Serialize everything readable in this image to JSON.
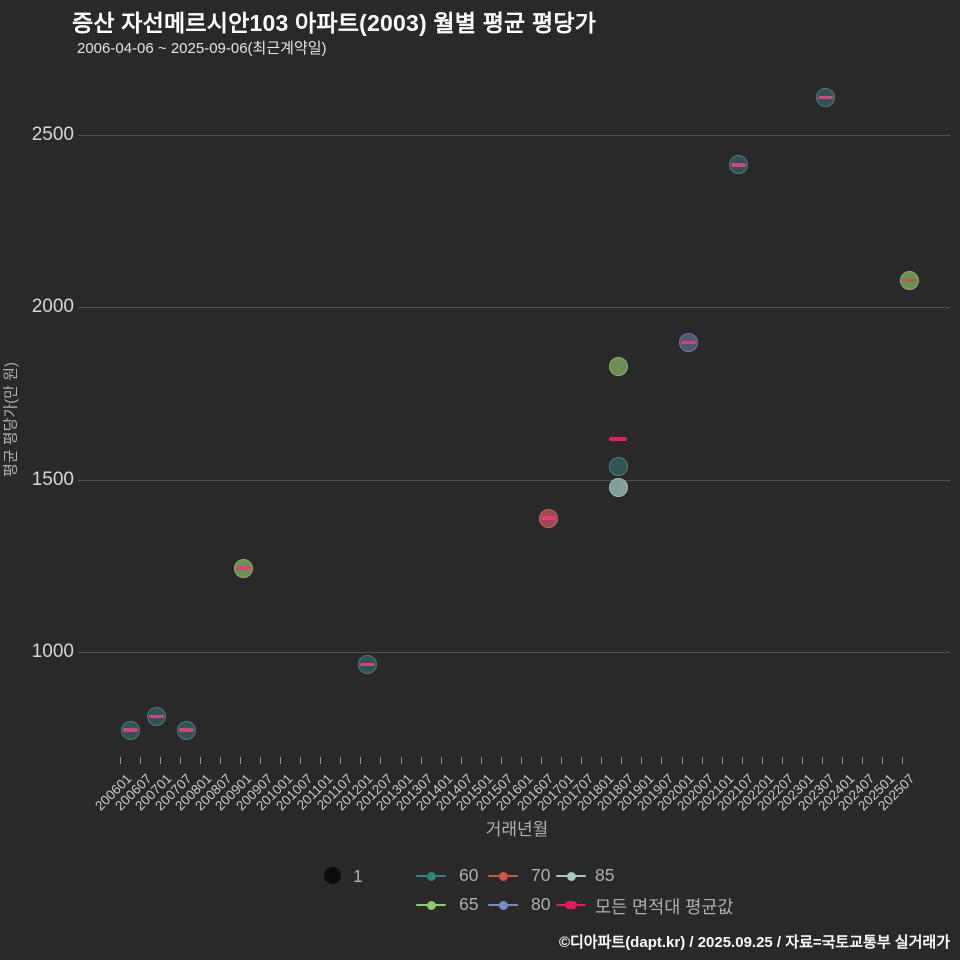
{
  "header": {
    "title": "증산 자선메르시안103 아파트(2003) 월별 평균 평당가",
    "subtitle": "2006-04-06 ~ 2025-09-06(최근계약일)"
  },
  "chart_data": {
    "type": "scatter",
    "title": "증산 자선메르시안103 아파트(2003) 월별 평균 평당가",
    "xlabel": "거래년월",
    "ylabel": "평균 평당가(만 원)",
    "x_axis": {
      "label": "거래년월",
      "first_month": "200601",
      "tick_labels": [
        "200601",
        "200607",
        "200701",
        "200707",
        "200801",
        "200807",
        "200901",
        "200907",
        "201001",
        "201007",
        "201101",
        "201107",
        "201201",
        "201207",
        "201301",
        "201307",
        "201401",
        "201407",
        "201501",
        "201507",
        "201601",
        "201607",
        "201701",
        "201707",
        "201801",
        "201807",
        "201901",
        "201907",
        "202001",
        "202007",
        "202101",
        "202107",
        "202201",
        "202207",
        "202301",
        "202307",
        "202401",
        "202407",
        "202501",
        "202507"
      ]
    },
    "y_axis": {
      "label": "평균 평당가(만 원)",
      "ticks": [
        2500,
        2000,
        1500,
        1000
      ],
      "range": [
        675,
        2690
      ]
    },
    "points": [
      {
        "month": "200604",
        "value": 775,
        "size_type": "60",
        "count": 1,
        "avg_dash": true
      },
      {
        "month": "200612",
        "value": 815,
        "size_type": "60",
        "count": 1,
        "avg_dash": true
      },
      {
        "month": "200709",
        "value": 775,
        "size_type": "60",
        "count": 1,
        "avg_dash": true
      },
      {
        "month": "200902",
        "value": 1245,
        "size_type": "65",
        "count": 1,
        "avg_dash": true
      },
      {
        "month": "201203",
        "value": 965,
        "size_type": "60",
        "count": 1,
        "avg_dash": true
      },
      {
        "month": "201609",
        "value": 1390,
        "size_type": "70",
        "count": 1,
        "avg_dash": true
      },
      {
        "month": "201806",
        "value": 1830,
        "size_type": "65",
        "count": 1,
        "avg_dash": false
      },
      {
        "month": "201806",
        "value": 1620,
        "size_type": "avg",
        "marker": "dash"
      },
      {
        "month": "201806",
        "value": 1540,
        "size_type": "60",
        "count": 1,
        "avg_dash": false
      },
      {
        "month": "201806",
        "value": 1480,
        "size_type": "85",
        "count": 1,
        "avg_dash": false
      },
      {
        "month": "202003",
        "value": 1900,
        "size_type": "80",
        "count": 1,
        "avg_dash": true
      },
      {
        "month": "202106",
        "value": 2415,
        "size_type": "60",
        "count": 1,
        "avg_dash": true
      },
      {
        "month": "202308",
        "value": 2610,
        "size_type": "60",
        "count": 1,
        "avg_dash": true
      },
      {
        "month": "202509",
        "value": 2080,
        "size_type": "65",
        "count": 1,
        "avg_dash": true,
        "dash_color": "#b05a50"
      }
    ],
    "series_styles": {
      "60": {
        "label": "60",
        "fill": "#2f5356",
        "border": "#4d7f78",
        "legend": "#2e857d"
      },
      "65": {
        "label": "65",
        "fill": "#6b9151",
        "border": "#86b168",
        "legend": "#8bce6c"
      },
      "70": {
        "label": "70",
        "fill": "#a2484d",
        "border": "#bf6a5e",
        "legend": "#cd5647"
      },
      "80": {
        "label": "80",
        "fill": "#4d5974",
        "border": "#6d7c9c",
        "legend": "#6f8fc0"
      },
      "85": {
        "label": "85",
        "fill": "#82a09a",
        "border": "#9ebcb4",
        "legend": "#a3c9c1"
      },
      "avg": {
        "label": "모든 면적대 평균값",
        "legend": "#e8175d",
        "dash": "#ea1a64"
      }
    },
    "default_point_dash_color": "#d8437b",
    "legend_position": "bottom"
  },
  "legend": {
    "size": {
      "label": "1"
    },
    "rows": [
      [
        "60",
        "70",
        "85"
      ],
      [
        "65",
        "80",
        "avg"
      ]
    ]
  },
  "colors": {
    "background": "#292929",
    "gridline": "#525252",
    "accent_pink": "#e8175d"
  },
  "footer": {
    "attribution": "©디아파트(dapt.kr) / 2025.09.25 / 자료=국토교통부 실거래가"
  }
}
